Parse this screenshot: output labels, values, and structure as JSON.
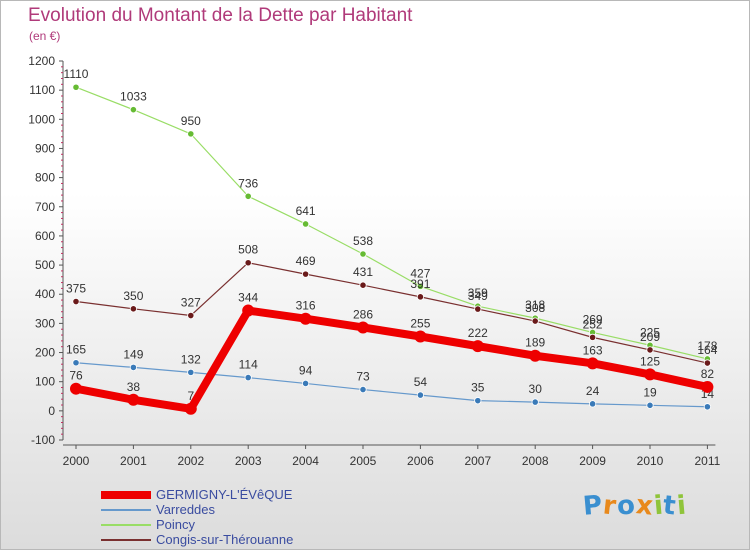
{
  "title": "Evolution du Montant de la Dette par Habitant",
  "subtitle": "(en €)",
  "logo": {
    "letters": [
      "P",
      "r",
      "o",
      "x",
      "i",
      "t",
      "i"
    ],
    "colors": [
      "#3a8fd0",
      "#e8891c",
      "#3a8fd0",
      "#e8891c",
      "#8fc43a",
      "#3a8fd0",
      "#8fc43a"
    ]
  },
  "chart_data": {
    "type": "line",
    "title": "Evolution du Montant de la Dette par Habitant",
    "ylabel": "(en €)",
    "xlabel": "",
    "x": [
      "2000",
      "2001",
      "2002",
      "2003",
      "2004",
      "2005",
      "2006",
      "2007",
      "2008",
      "2009",
      "2010",
      "2011"
    ],
    "ylim": [
      -100,
      1200
    ],
    "yticks": [
      "-100",
      "0",
      "100",
      "200",
      "300",
      "400",
      "500",
      "600",
      "700",
      "800",
      "900",
      "1000",
      "1100",
      "1200"
    ],
    "grid": false,
    "legend_position": "bottom-left",
    "series": [
      {
        "name": "Poincy",
        "color": "#99dd66",
        "marker": "#66bb33",
        "width": 1.2,
        "values": [
          1110,
          1033,
          950,
          736,
          641,
          538,
          427,
          359,
          318,
          269,
          225,
          178
        ]
      },
      {
        "name": "Congis-sur-Thérouanne",
        "color": "#7a3030",
        "marker": "#6a1a1a",
        "width": 1.2,
        "values": [
          375,
          350,
          327,
          508,
          469,
          431,
          391,
          349,
          308,
          252,
          209,
          164
        ]
      },
      {
        "name": "Varreddes",
        "color": "#6699cc",
        "marker": "#3a7ab8",
        "width": 1.2,
        "values": [
          165,
          149,
          132,
          114,
          94,
          73,
          54,
          35,
          30,
          24,
          19,
          14
        ]
      },
      {
        "name": "GERMIGNY-L'ÉVêQUE",
        "color": "#ee0000",
        "marker": "#ee0000",
        "width": 8,
        "values": [
          76,
          38,
          7,
          344,
          316,
          286,
          255,
          222,
          189,
          163,
          125,
          82
        ]
      }
    ],
    "legend_order": [
      "GERMIGNY-L'ÉVêQUE",
      "Varreddes",
      "Poincy",
      "Congis-sur-Thérouanne"
    ]
  }
}
